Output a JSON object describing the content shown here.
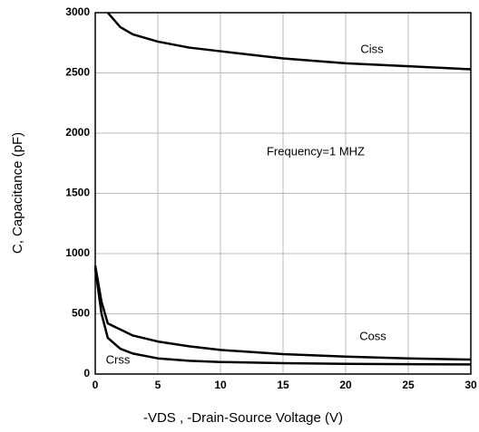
{
  "chart_data": {
    "type": "line",
    "x_label": "-VDS , -Drain-Source Voltage (V)",
    "y_label": "C, Capacitance (pF)",
    "annotations": [
      "Ciss",
      "Coss",
      "Crss",
      "Frequency=1 MHZ"
    ],
    "x": [
      0,
      0.5,
      1,
      2,
      3,
      5,
      7.5,
      10,
      15,
      20,
      25,
      30
    ],
    "series": [
      {
        "name": "Ciss",
        "color": "#000000",
        "values": [
          null,
          null,
          3000,
          2880,
          2820,
          2760,
          2710,
          2680,
          2620,
          2580,
          2555,
          2530
        ]
      },
      {
        "name": "Coss",
        "color": "#000000",
        "values": [
          900,
          600,
          420,
          370,
          320,
          270,
          230,
          200,
          165,
          145,
          130,
          120
        ]
      },
      {
        "name": "Crss",
        "color": "#000000",
        "values": [
          880,
          500,
          300,
          210,
          170,
          130,
          110,
          100,
          90,
          85,
          82,
          80
        ]
      }
    ],
    "xlim": [
      0,
      30
    ],
    "xticks": [
      0,
      5,
      10,
      15,
      20,
      25,
      30
    ],
    "ylim": [
      0,
      3000
    ],
    "yticks": [
      0,
      500,
      1000,
      1500,
      2000,
      2500,
      3000
    ],
    "grid": true
  }
}
